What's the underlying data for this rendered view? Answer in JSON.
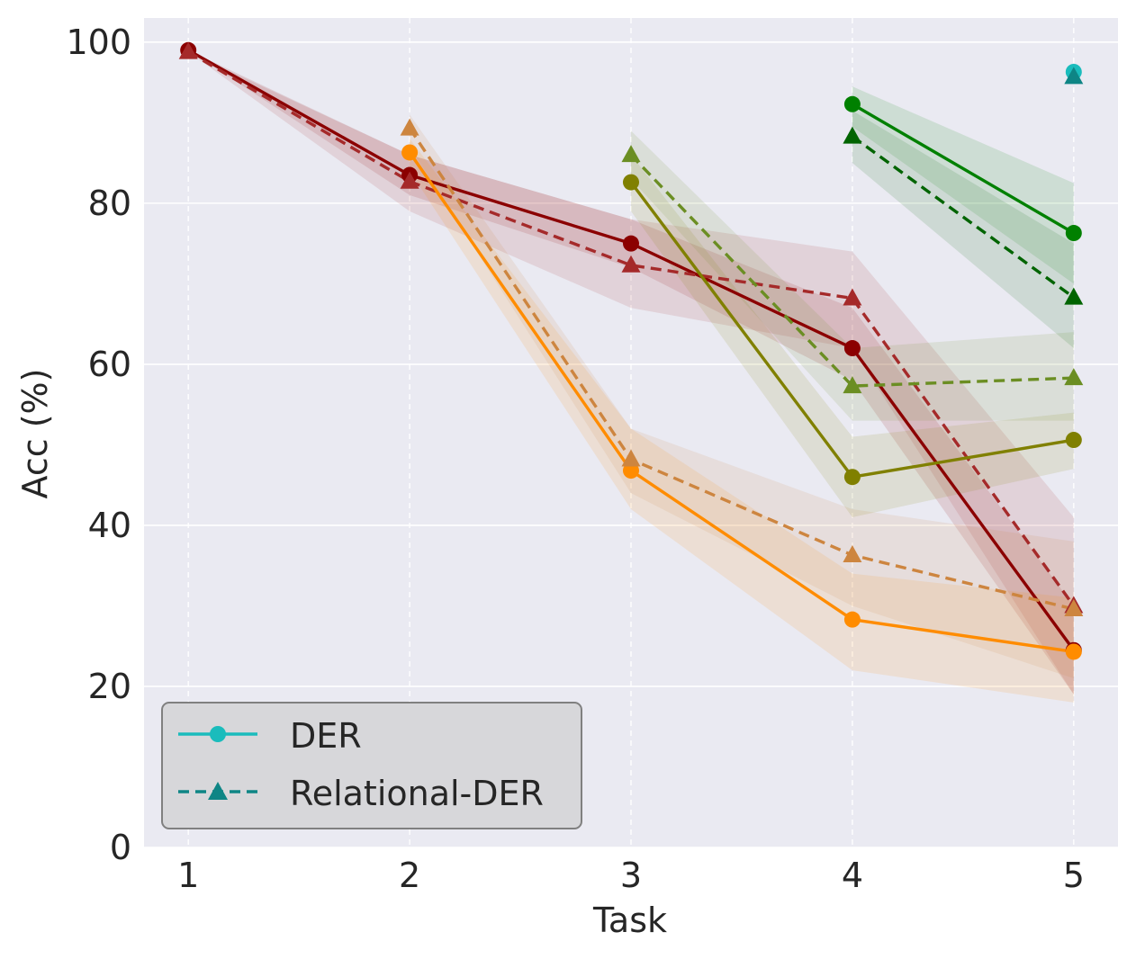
{
  "chart_data": {
    "type": "line",
    "title": "",
    "xlabel": "Task",
    "ylabel": "Acc (%)",
    "xlim": [
      0.8,
      5.2
    ],
    "ylim": [
      0,
      103
    ],
    "xticks": [
      1,
      2,
      3,
      4,
      5
    ],
    "yticks": [
      0,
      20,
      40,
      60,
      80,
      100
    ],
    "xtick_labels": [
      "1",
      "2",
      "3",
      "4",
      "5"
    ],
    "ytick_labels": [
      "0",
      "20",
      "40",
      "60",
      "80",
      "100"
    ],
    "grid": true,
    "background": "#eaeaf2",
    "legend": {
      "placement": "lower-left",
      "entries": [
        {
          "label": "DER",
          "style": "solid",
          "marker": "circle",
          "color": "#1abcbc"
        },
        {
          "label": "Relational-DER",
          "style": "dashed",
          "marker": "triangle",
          "color": "#0e8585"
        }
      ]
    },
    "series": [
      {
        "name": "Task 1 - DER",
        "style": "solid",
        "marker": "circle",
        "color": "#8b0000",
        "x": [
          1,
          2,
          3,
          4,
          5
        ],
        "y": [
          99,
          83.5,
          75,
          62,
          24.5
        ],
        "lower": [
          99,
          81,
          72,
          58,
          19
        ],
        "upper": [
          99,
          86,
          78,
          67,
          30
        ]
      },
      {
        "name": "Task 1 - Relational-DER",
        "style": "dashed",
        "marker": "triangle",
        "color": "#a52a2a",
        "x": [
          1,
          2,
          3,
          4,
          5
        ],
        "y": [
          98.8,
          82.7,
          72.3,
          68.2,
          30
        ],
        "lower": [
          98.8,
          79,
          67,
          62,
          19
        ],
        "upper": [
          98.8,
          86,
          78,
          74,
          41
        ]
      },
      {
        "name": "Task 2 - DER",
        "style": "solid",
        "marker": "circle",
        "color": "#ff8c00",
        "x": [
          2,
          3,
          4,
          5
        ],
        "y": [
          86.3,
          46.8,
          28.3,
          24.3
        ],
        "lower": [
          84,
          42,
          22,
          18
        ],
        "upper": [
          88,
          52,
          34,
          31
        ]
      },
      {
        "name": "Task 2 - Relational-DER",
        "style": "dashed",
        "marker": "triangle",
        "color": "#cd853f",
        "x": [
          2,
          3,
          4,
          5
        ],
        "y": [
          89.3,
          48.2,
          36.3,
          29.6
        ],
        "lower": [
          87,
          44,
          30,
          21
        ],
        "upper": [
          91,
          52,
          42,
          38
        ]
      },
      {
        "name": "Task 3 - DER",
        "style": "solid",
        "marker": "circle",
        "color": "#808000",
        "x": [
          3,
          4,
          5
        ],
        "y": [
          82.6,
          46.0,
          50.6
        ],
        "lower": [
          79,
          41,
          47
        ],
        "upper": [
          86,
          51,
          54
        ]
      },
      {
        "name": "Task 3 - Relational-DER",
        "style": "dashed",
        "marker": "triangle",
        "color": "#6b8e23",
        "x": [
          3,
          4,
          5
        ],
        "y": [
          86.0,
          57.3,
          58.3
        ],
        "lower": [
          83,
          53,
          53
        ],
        "upper": [
          89,
          62,
          64
        ]
      },
      {
        "name": "Task 4 - DER",
        "style": "solid",
        "marker": "circle",
        "color": "#008000",
        "x": [
          4,
          5
        ],
        "y": [
          92.3,
          76.3
        ],
        "lower": [
          89.5,
          70
        ],
        "upper": [
          94.5,
          82.5
        ]
      },
      {
        "name": "Task 4 - Relational-DER",
        "style": "dashed",
        "marker": "triangle",
        "color": "#006400",
        "x": [
          4,
          5
        ],
        "y": [
          88.3,
          68.3
        ],
        "lower": [
          85,
          62
        ],
        "upper": [
          91.5,
          75
        ]
      },
      {
        "name": "Task 5 - DER",
        "style": "solid",
        "marker": "circle",
        "color": "#1abcbc",
        "x": [
          5
        ],
        "y": [
          96.3
        ],
        "lower": [
          96.3
        ],
        "upper": [
          96.3
        ]
      },
      {
        "name": "Task 5 - Relational-DER",
        "style": "dashed",
        "marker": "triangle",
        "color": "#0e8585",
        "x": [
          5
        ],
        "y": [
          95.7
        ],
        "lower": [
          95.7
        ],
        "upper": [
          95.7
        ]
      }
    ]
  }
}
